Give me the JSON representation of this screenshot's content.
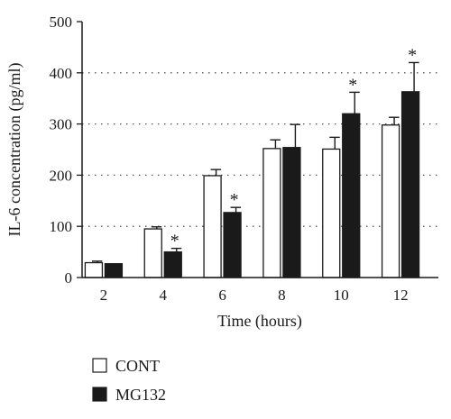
{
  "chart_data": {
    "type": "bar",
    "xlabel": "Time (hours)",
    "ylabel": "IL-6 concentration (pg/ml)",
    "categories": [
      "2",
      "4",
      "6",
      "8",
      "10",
      "12"
    ],
    "ylim": [
      0,
      500
    ],
    "yticks": [
      "0",
      "100",
      "200",
      "300",
      "400",
      "500"
    ],
    "grid": "dotted horizontal at 100, 200, 300, 400",
    "legend_position": "bottom-left",
    "series": [
      {
        "name": "CONT",
        "fill": "#ffffff",
        "values": [
          29,
          95,
          199,
          252,
          251,
          298
        ],
        "errors": [
          3,
          4,
          12,
          17,
          23,
          15
        ],
        "significant": [
          false,
          false,
          false,
          false,
          false,
          false
        ]
      },
      {
        "name": "MG132",
        "fill": "#1a1a1a",
        "values": [
          27,
          50,
          127,
          254,
          320,
          363
        ],
        "errors": [
          0,
          7,
          10,
          45,
          42,
          57
        ],
        "significant": [
          false,
          true,
          true,
          false,
          true,
          true
        ]
      }
    ],
    "significance_symbol": "*"
  }
}
